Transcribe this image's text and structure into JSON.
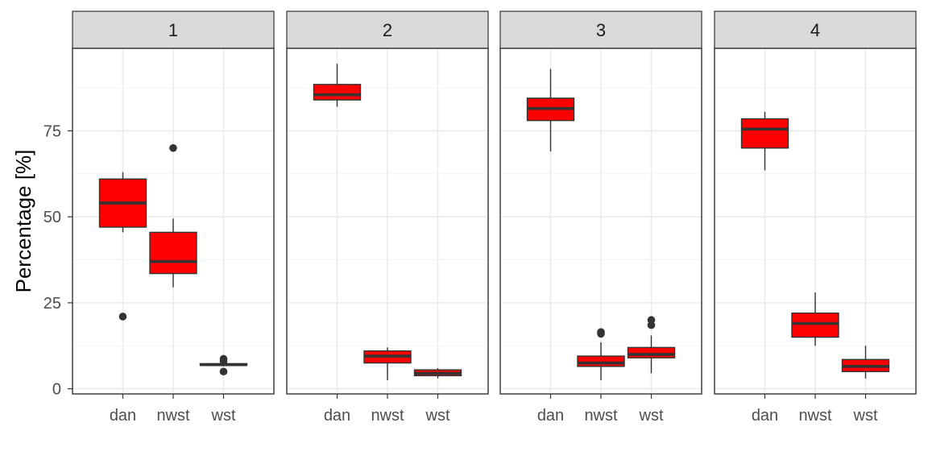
{
  "chart_data": {
    "type": "boxplot",
    "facets": [
      {
        "label": "1",
        "boxes": [
          {
            "category": "dan",
            "min": 45.5,
            "q1": 47.0,
            "median": 54.0,
            "q3": 61.0,
            "max": 63.0,
            "outliers": [
              21.0
            ]
          },
          {
            "category": "nwst",
            "min": 29.5,
            "q1": 33.5,
            "median": 37.0,
            "q3": 45.5,
            "max": 49.5,
            "outliers": [
              70.0
            ]
          },
          {
            "category": "wst",
            "min": 6.5,
            "q1": 6.8,
            "median": 7.0,
            "q3": 7.3,
            "max": 7.6,
            "outliers": [
              5.0,
              8.0,
              8.7
            ]
          }
        ]
      },
      {
        "label": "2",
        "boxes": [
          {
            "category": "dan",
            "min": 82.0,
            "q1": 84.0,
            "median": 85.5,
            "q3": 88.5,
            "max": 94.5,
            "outliers": []
          },
          {
            "category": "nwst",
            "min": 2.5,
            "q1": 7.5,
            "median": 9.5,
            "q3": 11.0,
            "max": 12.0,
            "outliers": []
          },
          {
            "category": "wst",
            "min": 3.0,
            "q1": 3.8,
            "median": 4.5,
            "q3": 5.5,
            "max": 6.0,
            "outliers": []
          }
        ]
      },
      {
        "label": "3",
        "boxes": [
          {
            "category": "dan",
            "min": 69.0,
            "q1": 78.0,
            "median": 81.5,
            "q3": 84.5,
            "max": 93.0,
            "outliers": []
          },
          {
            "category": "nwst",
            "min": 2.5,
            "q1": 6.5,
            "median": 7.5,
            "q3": 9.5,
            "max": 13.5,
            "outliers": [
              16.0,
              16.5
            ]
          },
          {
            "category": "wst",
            "min": 4.5,
            "q1": 9.0,
            "median": 10.0,
            "q3": 12.0,
            "max": 15.5,
            "outliers": [
              18.5,
              20.0
            ]
          }
        ]
      },
      {
        "label": "4",
        "boxes": [
          {
            "category": "dan",
            "min": 63.5,
            "q1": 70.0,
            "median": 75.5,
            "q3": 78.5,
            "max": 80.5,
            "outliers": []
          },
          {
            "category": "nwst",
            "min": 12.5,
            "q1": 15.0,
            "median": 19.0,
            "q3": 22.0,
            "max": 28.0,
            "outliers": []
          },
          {
            "category": "wst",
            "min": 3.0,
            "q1": 5.0,
            "median": 6.5,
            "q3": 8.5,
            "max": 12.5,
            "outliers": []
          }
        ]
      }
    ],
    "categories": [
      "dan",
      "nwst",
      "wst"
    ],
    "ylabel": "Percentage [%]",
    "xlabel": "",
    "ylim": [
      -1.5,
      99
    ],
    "yticks": [
      0,
      25,
      50,
      75
    ],
    "ytick_labels": [
      "0",
      "25",
      "50",
      "75"
    ],
    "grid": true,
    "colors": {
      "box_fill": "#ff0000",
      "box_stroke": "#333333",
      "panel_border": "#333333",
      "strip_fill": "#d9d9d9",
      "grid_major": "#ebebeb",
      "grid_minor": "#f3f3f3",
      "tick_text": "#4d4d4d"
    }
  }
}
